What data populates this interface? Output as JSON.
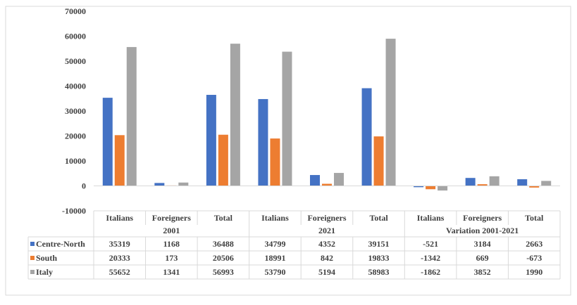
{
  "chart_data": {
    "type": "bar",
    "title": "",
    "ylim": [
      -10000,
      70000
    ],
    "yticks": [
      70000,
      60000,
      50000,
      40000,
      30000,
      20000,
      10000,
      0,
      -10000
    ],
    "categories": [
      "Italians",
      "Foreigners",
      "Total",
      "Italians",
      "Foreigners",
      "Total",
      "Italians",
      "Foreigners",
      "Total"
    ],
    "groups": [
      {
        "label": "2001",
        "span": 3
      },
      {
        "label": "2021",
        "span": 3
      },
      {
        "label": "Variation 2001-2021",
        "span": 3
      }
    ],
    "series": [
      {
        "name": "Centre-North",
        "color": "#4472C4",
        "values": [
          35319,
          1168,
          36488,
          34799,
          4352,
          39151,
          -521,
          3184,
          2663
        ]
      },
      {
        "name": "South",
        "color": "#ED7D31",
        "values": [
          20333,
          173,
          20506,
          18991,
          842,
          19833,
          -1342,
          669,
          -673
        ]
      },
      {
        "name": "Italy",
        "color": "#A5A5A5",
        "values": [
          55652,
          1341,
          56993,
          53790,
          5194,
          58983,
          -1862,
          3852,
          1990
        ]
      }
    ],
    "legend": "data-table"
  }
}
